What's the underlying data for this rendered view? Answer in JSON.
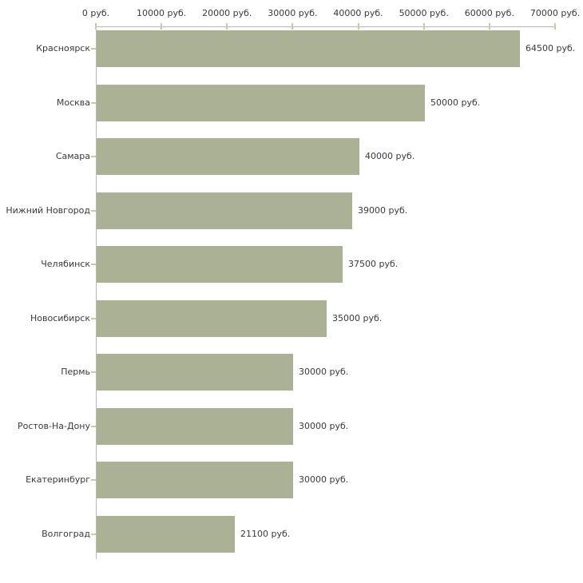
{
  "chart_data": {
    "type": "bar",
    "orientation": "horizontal",
    "title": "",
    "unit": "руб.",
    "categories": [
      "Красноярск",
      "Москва",
      "Самара",
      "Нижний Новгород",
      "Челябинск",
      "Новосибирск",
      "Пермь",
      "Ростов-На-Дону",
      "Екатеринбург",
      "Волгоград"
    ],
    "values": [
      64500,
      50000,
      40000,
      39000,
      37500,
      35000,
      30000,
      30000,
      30000,
      21100
    ],
    "value_labels": [
      "64500 руб.",
      "50000 руб.",
      "40000 руб.",
      "39000 руб.",
      "37500 руб.",
      "35000 руб.",
      "30000 руб.",
      "30000 руб.",
      "30000 руб.",
      "21100 руб."
    ],
    "x_axis": {
      "position": "top",
      "min": 0,
      "max": 70000,
      "ticks": [
        0,
        10000,
        20000,
        30000,
        40000,
        50000,
        60000,
        70000
      ],
      "tick_labels": [
        "0 руб.",
        "10000 руб.",
        "20000 руб.",
        "30000 руб.",
        "40000 руб.",
        "50000 руб.",
        "60000 руб.",
        "70000 руб."
      ]
    },
    "grid": false,
    "legend": false,
    "colors": {
      "bar": "#abb194",
      "axis_line": "#b8b8b8",
      "tick": "#c9c9a2",
      "text": "#3a3a3a"
    }
  }
}
